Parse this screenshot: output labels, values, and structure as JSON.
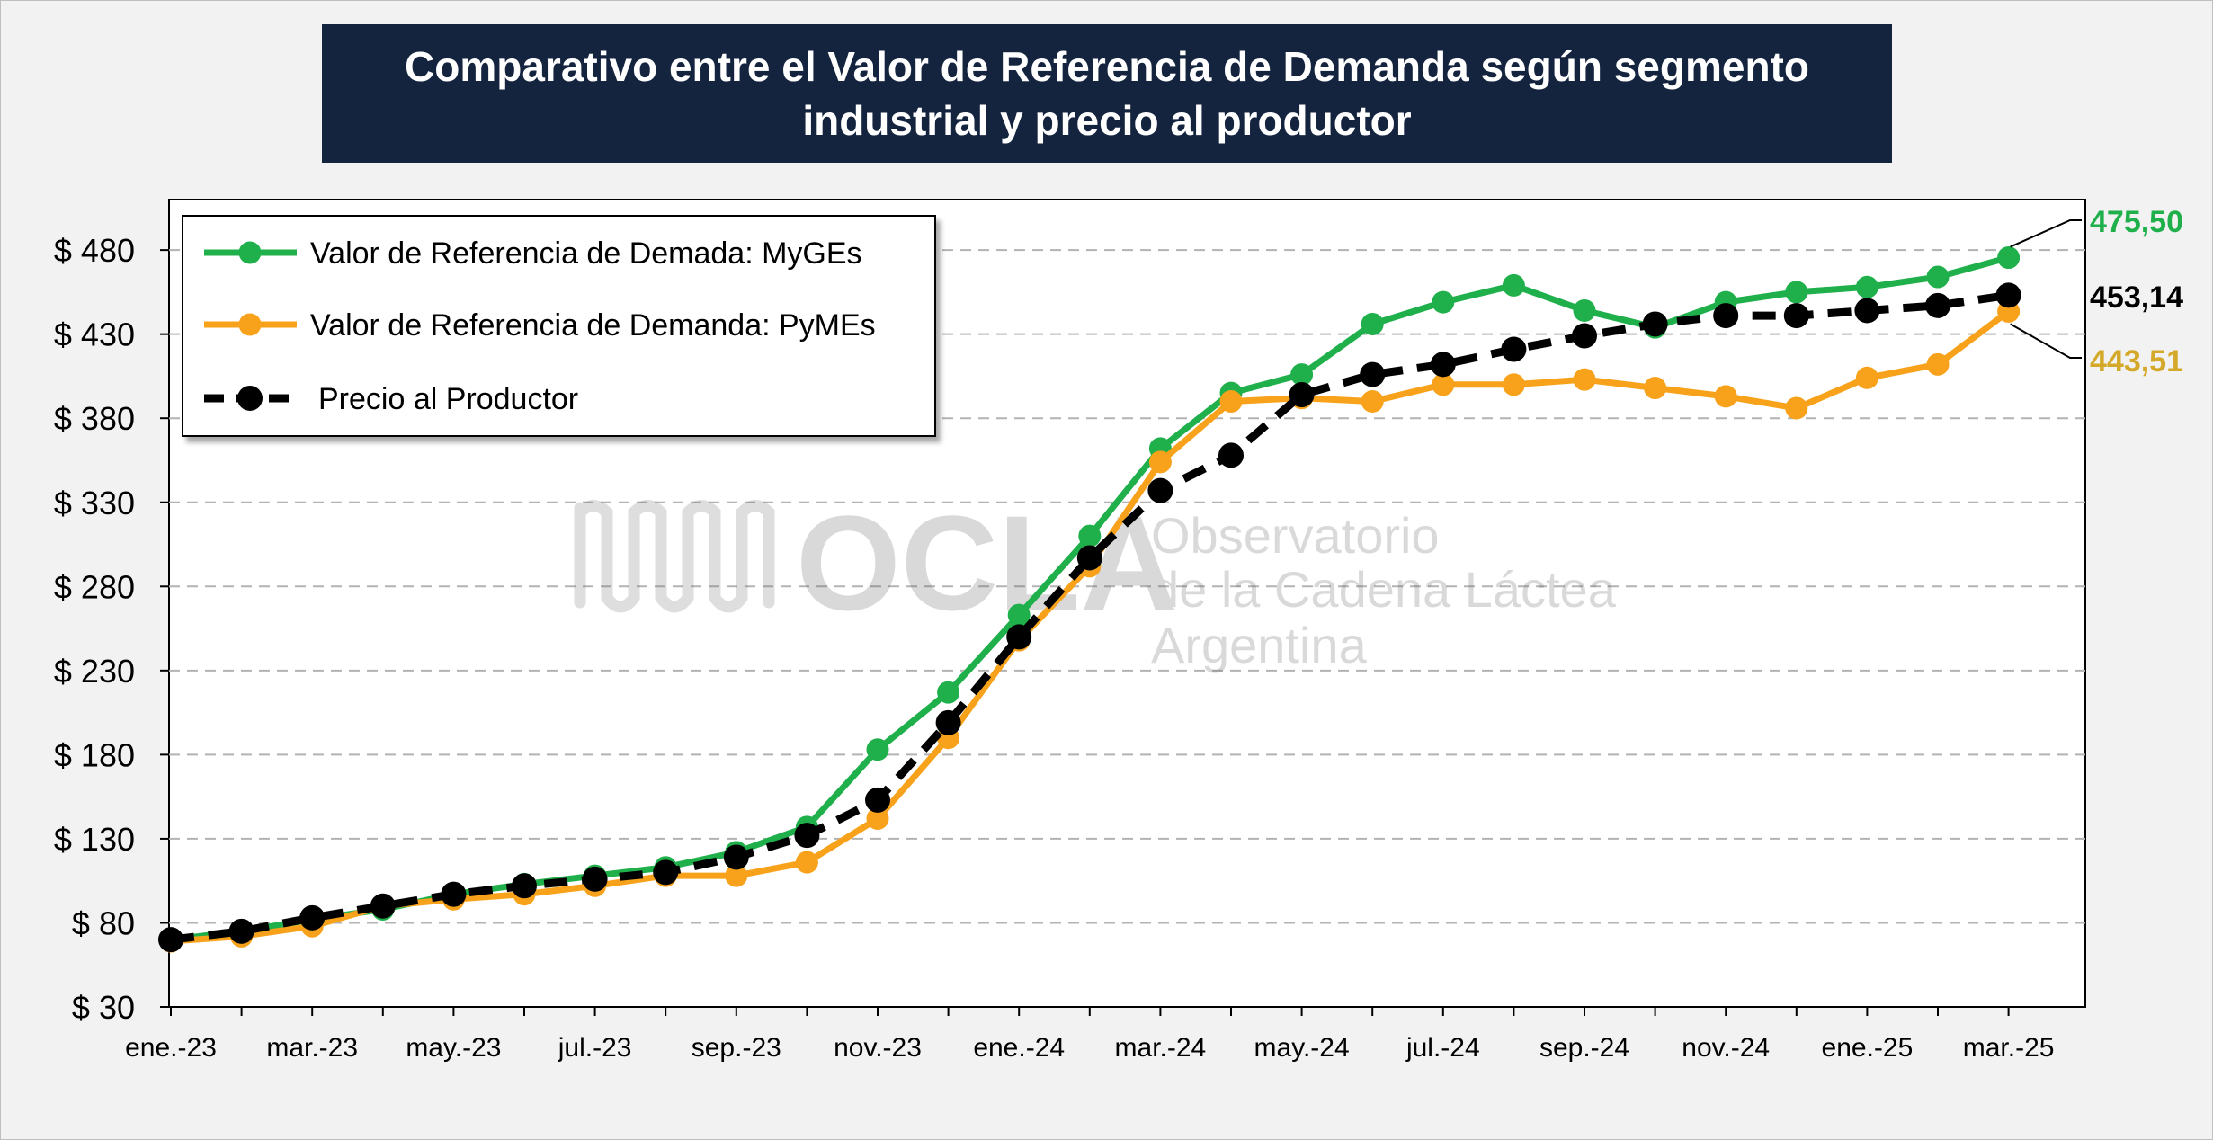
{
  "chart_data": {
    "type": "line",
    "title": "Comparativo entre el Valor de Referencia de Demanda según segmento industrial y precio al productor",
    "x": [
      "ene.-23",
      "feb.-23",
      "mar.-23",
      "abr.-23",
      "may.-23",
      "jun.-23",
      "jul.-23",
      "ago.-23",
      "sep.-23",
      "oct.-23",
      "nov.-23",
      "dic.-23",
      "ene.-24",
      "feb.-24",
      "mar.-24",
      "abr.-24",
      "may.-24",
      "jun.-24",
      "jul.-24",
      "ago.-24",
      "sep.-24",
      "oct.-24",
      "nov.-24",
      "dic.-24",
      "ene.-25",
      "feb.-25",
      "mar.-25"
    ],
    "x_tick_labels": [
      "ene.-23",
      "mar.-23",
      "may.-23",
      "jul.-23",
      "sep.-23",
      "nov.-23",
      "ene.-24",
      "mar.-24",
      "may.-24",
      "jul.-24",
      "sep.-24",
      "nov.-24",
      "ene.-25",
      "mar.-25"
    ],
    "y_tick_labels": [
      "$ 30",
      "$ 80",
      "$ 130",
      "$ 180",
      "$ 230",
      "$ 280",
      "$ 330",
      "$ 380",
      "$ 430",
      "$ 480"
    ],
    "ylim": [
      30,
      510
    ],
    "grid": true,
    "legend_position": "top-left",
    "series": [
      {
        "name": "Valor de Referencia de Demada: MyGEs",
        "color": "#1fb04b",
        "dashed": false,
        "values": [
          70,
          75,
          82,
          88,
          97,
          103,
          108,
          113,
          122,
          137,
          183,
          217,
          263,
          310,
          362,
          395,
          406,
          436,
          449,
          459,
          444,
          434,
          449,
          455,
          458,
          464,
          475.5
        ],
        "end_label": "475,50",
        "end_label_color": "#1fb04b"
      },
      {
        "name": "Valor de Referencia de Demanda: PyMEs",
        "color": "#f7a21a",
        "dashed": false,
        "values": [
          69,
          72,
          78,
          90,
          94,
          97,
          102,
          108,
          108,
          116,
          142,
          190,
          248,
          292,
          354,
          390,
          392,
          390,
          400,
          400,
          403,
          398,
          393,
          386,
          404,
          412,
          443.51
        ],
        "end_label": "443,51",
        "end_label_color": "#d4a92a"
      },
      {
        "name": "Precio al Productor",
        "color": "#000000",
        "dashed": true,
        "values": [
          70,
          75,
          83,
          90,
          97,
          102,
          106,
          110,
          119,
          132,
          153,
          199,
          250,
          297,
          337,
          358,
          394,
          406,
          412,
          421,
          429,
          436,
          441,
          441,
          444,
          447,
          453.14
        ],
        "end_label": "453,14",
        "end_label_color": "#000000"
      }
    ]
  },
  "watermark": {
    "logo_text": "OCLA",
    "line1": "Observatorio",
    "line2": "de la Cadena Láctea",
    "line3": "Argentina"
  }
}
